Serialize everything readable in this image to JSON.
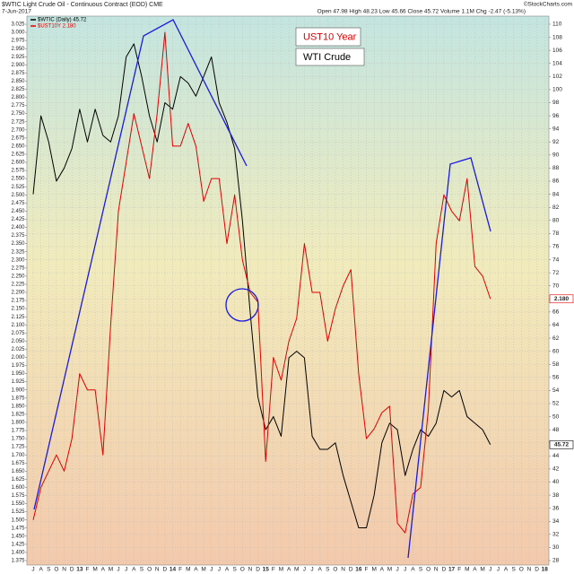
{
  "chart_data": {
    "type": "line",
    "title": "$WTIC Light Crude Oil - Continuous Contract (EOD) CME",
    "date": "7-Jun-2017",
    "quote": "Open 47.98  High 48.23  Low 45.66  Close 45.72  Volume 1.1M  Chg -2.47 (-5.13%)",
    "credit": "©StockCharts.com",
    "annotations": [
      "UST10 Year",
      "WTI Crude"
    ],
    "grid": true,
    "categories": [
      "J",
      "A",
      "S",
      "O",
      "N",
      "D",
      "13",
      "F",
      "M",
      "A",
      "M",
      "J",
      "J",
      "A",
      "S",
      "O",
      "N",
      "D",
      "14",
      "F",
      "M",
      "A",
      "M",
      "J",
      "J",
      "A",
      "S",
      "O",
      "N",
      "D",
      "15",
      "F",
      "M",
      "A",
      "M",
      "J",
      "J",
      "A",
      "S",
      "O",
      "N",
      "D",
      "16",
      "F",
      "M",
      "A",
      "M",
      "J",
      "J",
      "A",
      "S",
      "O",
      "N",
      "D",
      "17",
      "F",
      "M",
      "A",
      "M",
      "J",
      "J",
      "A",
      "S",
      "O",
      "N",
      "D",
      "18"
    ],
    "series": [
      {
        "name": "$WTIC (Daily) 45.72",
        "color": "#000000",
        "axis": "y2",
        "end_label": "45.72",
        "values": [
          84,
          96,
          92,
          86,
          88,
          91,
          97,
          92,
          97,
          93,
          92,
          96,
          105,
          107,
          102,
          96,
          92,
          98,
          97,
          102,
          101,
          99,
          102,
          105,
          98,
          95,
          91,
          80,
          66,
          53,
          48,
          50,
          47,
          59,
          60,
          59,
          47,
          45,
          45,
          46,
          41,
          37,
          33,
          33,
          38,
          46,
          49,
          48,
          41,
          45,
          48,
          47,
          49,
          54,
          53,
          54,
          50,
          49,
          48,
          45.72,
          null,
          null,
          null,
          null,
          null,
          null,
          null
        ]
      },
      {
        "name": "$UST10Y 2.180",
        "color": "#e00000",
        "end_label": "2.180",
        "values": [
          1.5,
          1.6,
          1.65,
          1.7,
          1.65,
          1.75,
          1.95,
          1.9,
          1.9,
          1.7,
          2.1,
          2.45,
          2.6,
          2.75,
          2.65,
          2.55,
          2.75,
          3.0,
          2.65,
          2.65,
          2.72,
          2.65,
          2.48,
          2.55,
          2.55,
          2.35,
          2.5,
          2.3,
          2.2,
          2.17,
          1.68,
          2.0,
          1.93,
          2.05,
          2.12,
          2.35,
          2.2,
          2.2,
          2.05,
          2.15,
          2.22,
          2.27,
          1.95,
          1.75,
          1.78,
          1.83,
          1.85,
          1.49,
          1.46,
          1.58,
          1.6,
          1.84,
          2.35,
          2.5,
          2.45,
          2.42,
          2.55,
          2.28,
          2.25,
          2.18,
          null,
          null,
          null,
          null,
          null,
          null,
          null
        ]
      }
    ],
    "ylim": [
      1.375,
      3.025
    ],
    "yticks": [
      1.375,
      {
        "value": 1.4,
        "label": "1.400"
      },
      1.425,
      {
        "value": 1.45,
        "label": "1.450"
      },
      1.475,
      {
        "value": 1.5,
        "label": "1.500"
      },
      1.525,
      {
        "value": 1.55,
        "label": "1.550"
      },
      1.575,
      {
        "value": 1.6,
        "label": "1.600"
      },
      1.625,
      {
        "value": 1.65,
        "label": "1.650"
      },
      1.675,
      {
        "value": 1.7,
        "label": "1.700"
      },
      1.725,
      {
        "value": 1.75,
        "label": "1.750"
      },
      1.775,
      {
        "value": 1.8,
        "label": "1.800"
      },
      1.825,
      {
        "value": 1.85,
        "label": "1.850"
      },
      1.875,
      {
        "value": 1.9,
        "label": "1.900"
      },
      1.925,
      {
        "value": 1.95,
        "label": "1.950"
      },
      1.975,
      {
        "value": 2,
        "label": "2.000"
      },
      2.025,
      {
        "value": 2.05,
        "label": "2.050"
      },
      2.075,
      {
        "value": 2.1,
        "label": "2.100"
      },
      2.125,
      {
        "value": 2.15,
        "label": "2.150"
      },
      2.175,
      {
        "value": 2.2,
        "label": "2.200"
      },
      2.225,
      {
        "value": 2.25,
        "label": "2.250"
      },
      2.275,
      {
        "value": 2.3,
        "label": "2.300"
      },
      2.325,
      {
        "value": 2.35,
        "label": "2.350"
      },
      2.375,
      {
        "value": 2.4,
        "label": "2.400"
      },
      2.425,
      {
        "value": 2.45,
        "label": "2.450"
      },
      2.475,
      {
        "value": 2.5,
        "label": "2.500"
      },
      2.525,
      {
        "value": 2.55,
        "label": "2.550"
      },
      2.575,
      {
        "value": 2.6,
        "label": "2.600"
      },
      2.625,
      {
        "value": 2.65,
        "label": "2.650"
      },
      2.675,
      {
        "value": 2.7,
        "label": "2.700"
      },
      2.725,
      {
        "value": 2.75,
        "label": "2.750"
      },
      2.775,
      {
        "value": 2.8,
        "label": "2.800"
      },
      2.825,
      {
        "value": 2.85,
        "label": "2.850"
      },
      2.875,
      {
        "value": 2.9,
        "label": "2.900"
      },
      2.925,
      {
        "value": 2.95,
        "label": "2.950"
      },
      2.975,
      {
        "value": 3,
        "label": "3.000"
      },
      3.025
    ],
    "y2lim": [
      28,
      110
    ],
    "y2ticks": [
      28,
      30,
      32,
      34,
      36,
      38,
      40,
      42,
      44,
      46,
      48,
      50,
      52,
      54,
      56,
      58,
      60,
      62,
      64,
      66,
      68,
      70,
      72,
      74,
      76,
      78,
      80,
      82,
      84,
      86,
      88,
      90,
      92,
      94,
      96,
      98,
      100,
      102,
      104,
      106,
      108,
      110
    ]
  }
}
